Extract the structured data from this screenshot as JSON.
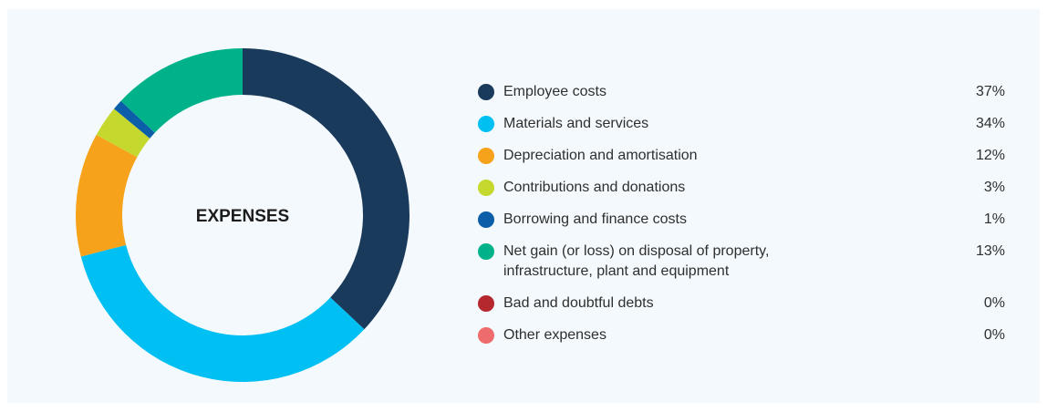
{
  "chart_data": {
    "type": "donut",
    "center_label": "EXPENSES",
    "categories": [
      "Employee costs",
      "Materials and services",
      "Depreciation and amortisation",
      "Contributions and donations",
      "Borrowing and finance costs",
      "Net gain (or loss) on disposal of property, infrastructure, plant and equipment",
      "Bad and doubtful debts",
      "Other expenses"
    ],
    "values": [
      37,
      34,
      12,
      3,
      1,
      13,
      0,
      0
    ],
    "value_labels": [
      "37%",
      "34%",
      "12%",
      "3%",
      "1%",
      "13%",
      "0%",
      "0%"
    ],
    "colors": [
      "#1a3a5c",
      "#00bff3",
      "#f7a21b",
      "#c4d82e",
      "#0d5ea8",
      "#00b28a",
      "#b5282e",
      "#f06b6b"
    ]
  }
}
